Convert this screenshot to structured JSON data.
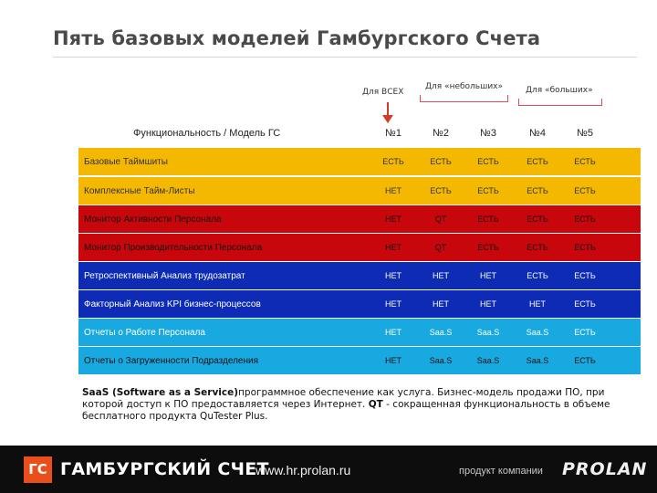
{
  "slide": {
    "title": "Пять базовых моделей Гамбургского Счета"
  },
  "groups": {
    "all": "Для ВСЕХ",
    "small": "Для «небольших»",
    "large": "Для «больших»"
  },
  "table": {
    "header_label": "Функциональность / Модель ГС",
    "models": [
      "№1",
      "№2",
      "№3",
      "№4",
      "№5"
    ],
    "rows": [
      {
        "label": "Базовые Таймшиты",
        "values": [
          "ЕСТЬ",
          "ЕСТЬ",
          "ЕСТЬ",
          "ЕСТЬ",
          "ЕСТЬ"
        ],
        "bg": "#f5b800",
        "fg": "#333333"
      },
      {
        "label": "Комплексные Тайм-Листы",
        "values": [
          "НЕТ",
          "ЕСТЬ",
          "ЕСТЬ",
          "ЕСТЬ",
          "ЕСТЬ"
        ],
        "bg": "#f5b800",
        "fg": "#333333"
      },
      {
        "label": "Монитор Активности Персонала",
        "values": [
          "НЕТ",
          "QT",
          "ЕСТЬ",
          "ЕСТЬ",
          "ЕСТЬ"
        ],
        "bg": "#c8070c",
        "fg": "#111111"
      },
      {
        "label": "Монитор Производительности Персонала",
        "values": [
          "НЕТ",
          "QT",
          "ЕСТЬ",
          "ЕСТЬ",
          "ЕСТЬ"
        ],
        "bg": "#c8070c",
        "fg": "#111111"
      },
      {
        "label": "Ретроспективный Анализ трудозатрат",
        "values": [
          "НЕТ",
          "НЕТ",
          "НЕТ",
          "ЕСТЬ",
          "ЕСТЬ"
        ],
        "bg": "#0d2bb5",
        "fg": "#ffffff"
      },
      {
        "label": "Факторный Анализ KPI бизнес-процессов",
        "values": [
          "НЕТ",
          "НЕТ",
          "НЕТ",
          "НЕТ",
          "ЕСТЬ"
        ],
        "bg": "#0d2bb5",
        "fg": "#ffffff"
      },
      {
        "label": "Отчеты о Работе Персонала",
        "values": [
          "НЕТ",
          "Saa.S",
          "Saa.S",
          "Saa.S",
          "ЕСТЬ"
        ],
        "bg": "#19a9e1",
        "fg": "#ffffff"
      },
      {
        "label": "Отчеты о Загруженности Подразделения",
        "values": [
          "НЕТ",
          "Saa.S",
          "Saa.S",
          "Saa.S",
          "ЕСТЬ"
        ],
        "bg": "#19a9e1",
        "fg": "#111111"
      }
    ]
  },
  "note": {
    "saas_term": "SaaS (Software as a Service)",
    "saas_text": "программное обеспечение как услуга. Бизнес-модель продажи ПО, при которой доступ к ПО предоставляется через Интернет.",
    "qt_term": "QT",
    "qt_text": " - сокращенная функциональность в объеме бесплатного продукта QuTester Plus."
  },
  "footer": {
    "logo_text": "ГС",
    "brand": "ГАМБУРГСКИЙ СЧЕТ",
    "site": "www.hr.prolan.ru",
    "company_label": "продукт компании",
    "company_name": "PROLAN"
  },
  "colors": {
    "accent": "#e94e1b",
    "arrow": "#d23a2a",
    "bracket": "#e8485a",
    "footer_bg": "#0d0d0d"
  }
}
